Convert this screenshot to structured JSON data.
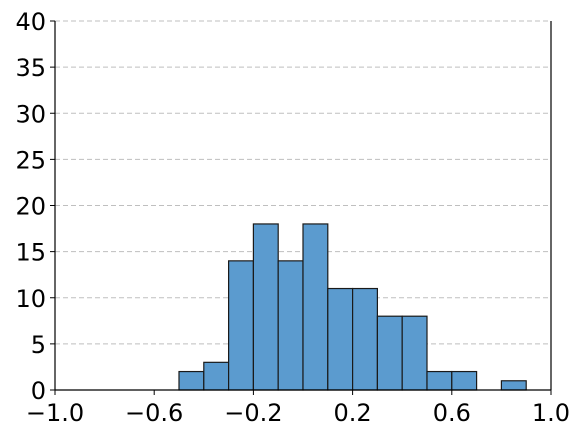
{
  "chart_data": {
    "type": "bar",
    "title": "",
    "xlabel": "",
    "ylabel": "",
    "xlim": [
      -1.0,
      1.0
    ],
    "ylim": [
      0,
      40
    ],
    "grid": "y-dashed",
    "bar_color": "#5b9bcf",
    "edge_color": "#1a1a1a",
    "grid_color": "#bfbfbf",
    "bin_width": 0.1,
    "bins": [
      {
        "x0": -0.5,
        "x1": -0.4,
        "count": 2
      },
      {
        "x0": -0.4,
        "x1": -0.3,
        "count": 3
      },
      {
        "x0": -0.3,
        "x1": -0.2,
        "count": 14
      },
      {
        "x0": -0.2,
        "x1": -0.1,
        "count": 18
      },
      {
        "x0": -0.1,
        "x1": 0.0,
        "count": 14
      },
      {
        "x0": 0.0,
        "x1": 0.1,
        "count": 18
      },
      {
        "x0": 0.1,
        "x1": 0.2,
        "count": 11
      },
      {
        "x0": 0.2,
        "x1": 0.3,
        "count": 11
      },
      {
        "x0": 0.3,
        "x1": 0.4,
        "count": 8
      },
      {
        "x0": 0.4,
        "x1": 0.5,
        "count": 8
      },
      {
        "x0": 0.5,
        "x1": 0.6,
        "count": 2
      },
      {
        "x0": 0.6,
        "x1": 0.7,
        "count": 2
      },
      {
        "x0": 0.8,
        "x1": 0.9,
        "count": 1
      }
    ],
    "x_ticks": [
      {
        "value": -1.0,
        "label": "−1.0"
      },
      {
        "value": -0.6,
        "label": "−0.6"
      },
      {
        "value": -0.2,
        "label": "−0.2"
      },
      {
        "value": 0.2,
        "label": "0.2"
      },
      {
        "value": 0.6,
        "label": "0.6"
      },
      {
        "value": 1.0,
        "label": "1.0"
      }
    ],
    "y_ticks": [
      {
        "value": 0,
        "label": "0"
      },
      {
        "value": 5,
        "label": "5"
      },
      {
        "value": 10,
        "label": "10"
      },
      {
        "value": 15,
        "label": "15"
      },
      {
        "value": 20,
        "label": "20"
      },
      {
        "value": 25,
        "label": "25"
      },
      {
        "value": 30,
        "label": "30"
      },
      {
        "value": 35,
        "label": "35"
      },
      {
        "value": 40,
        "label": "40"
      }
    ]
  }
}
